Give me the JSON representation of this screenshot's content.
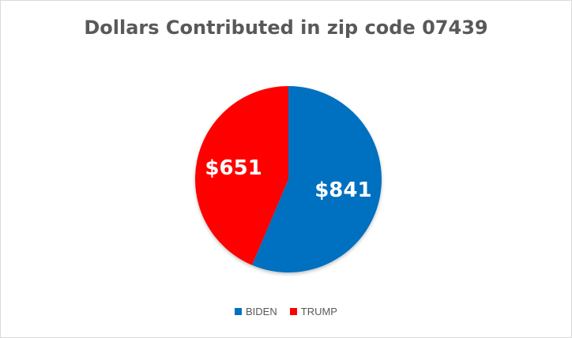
{
  "chart_data": {
    "type": "pie",
    "title": "Dollars Contributed in zip code 07439",
    "slices": [
      {
        "name": "BIDEN",
        "value": 841,
        "label": "$841",
        "color": "#0070C0"
      },
      {
        "name": "TRUMP",
        "value": 651,
        "label": "$651",
        "color": "#FF0000"
      }
    ],
    "start_angle_deg": 0,
    "direction": "clockwise",
    "legend_position": "bottom"
  }
}
